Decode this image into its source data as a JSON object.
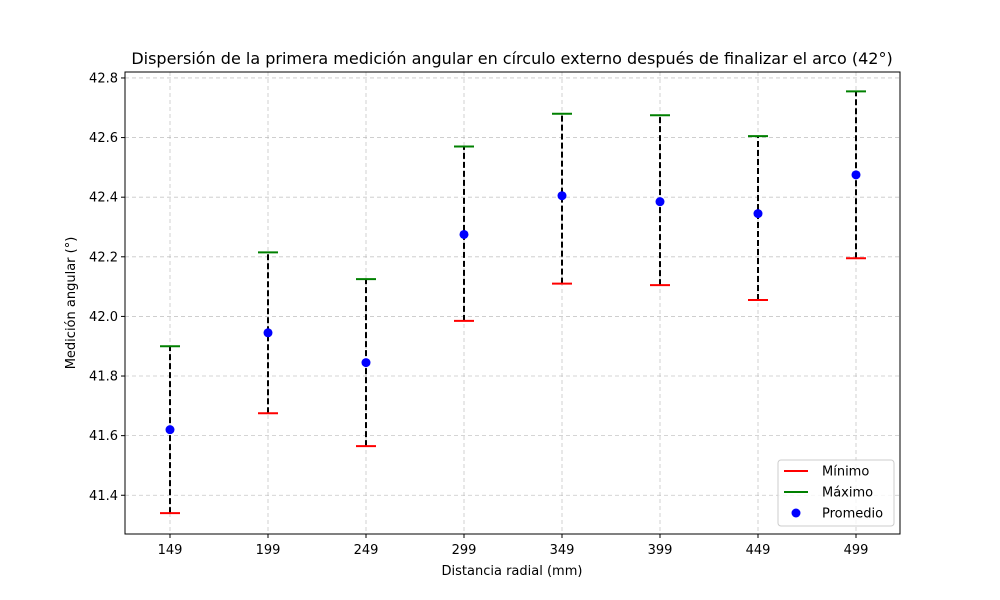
{
  "chart_data": {
    "type": "scatter",
    "title": "Dispersión de la primera medición angular en círculo externo después de finalizar el arco (42°)",
    "xlabel": "Distancia radial (mm)",
    "ylabel": "Medición angular (°)",
    "x": [
      149,
      199,
      249,
      299,
      349,
      399,
      449,
      499
    ],
    "ylim": [
      41.27,
      42.82
    ],
    "yticks": [
      41.4,
      41.6,
      41.8,
      42.0,
      42.2,
      42.4,
      42.6,
      42.8
    ],
    "ytick_labels": [
      "41.4",
      "41.6",
      "41.8",
      "42.0",
      "42.2",
      "42.4",
      "42.6",
      "42.8"
    ],
    "grid": true,
    "legend_position": "lower-right",
    "series": [
      {
        "name": "Mínimo",
        "color": "#ff0000",
        "values": [
          41.34,
          41.675,
          41.565,
          41.985,
          42.11,
          42.105,
          42.055,
          42.195
        ]
      },
      {
        "name": "Máximo",
        "color": "#008000",
        "values": [
          41.9,
          42.215,
          42.125,
          42.57,
          42.68,
          42.675,
          42.605,
          42.755
        ]
      },
      {
        "name": "Promedio",
        "color": "#0000ff",
        "values": [
          41.62,
          41.945,
          41.845,
          42.275,
          42.405,
          42.385,
          42.345,
          42.475
        ]
      }
    ]
  }
}
